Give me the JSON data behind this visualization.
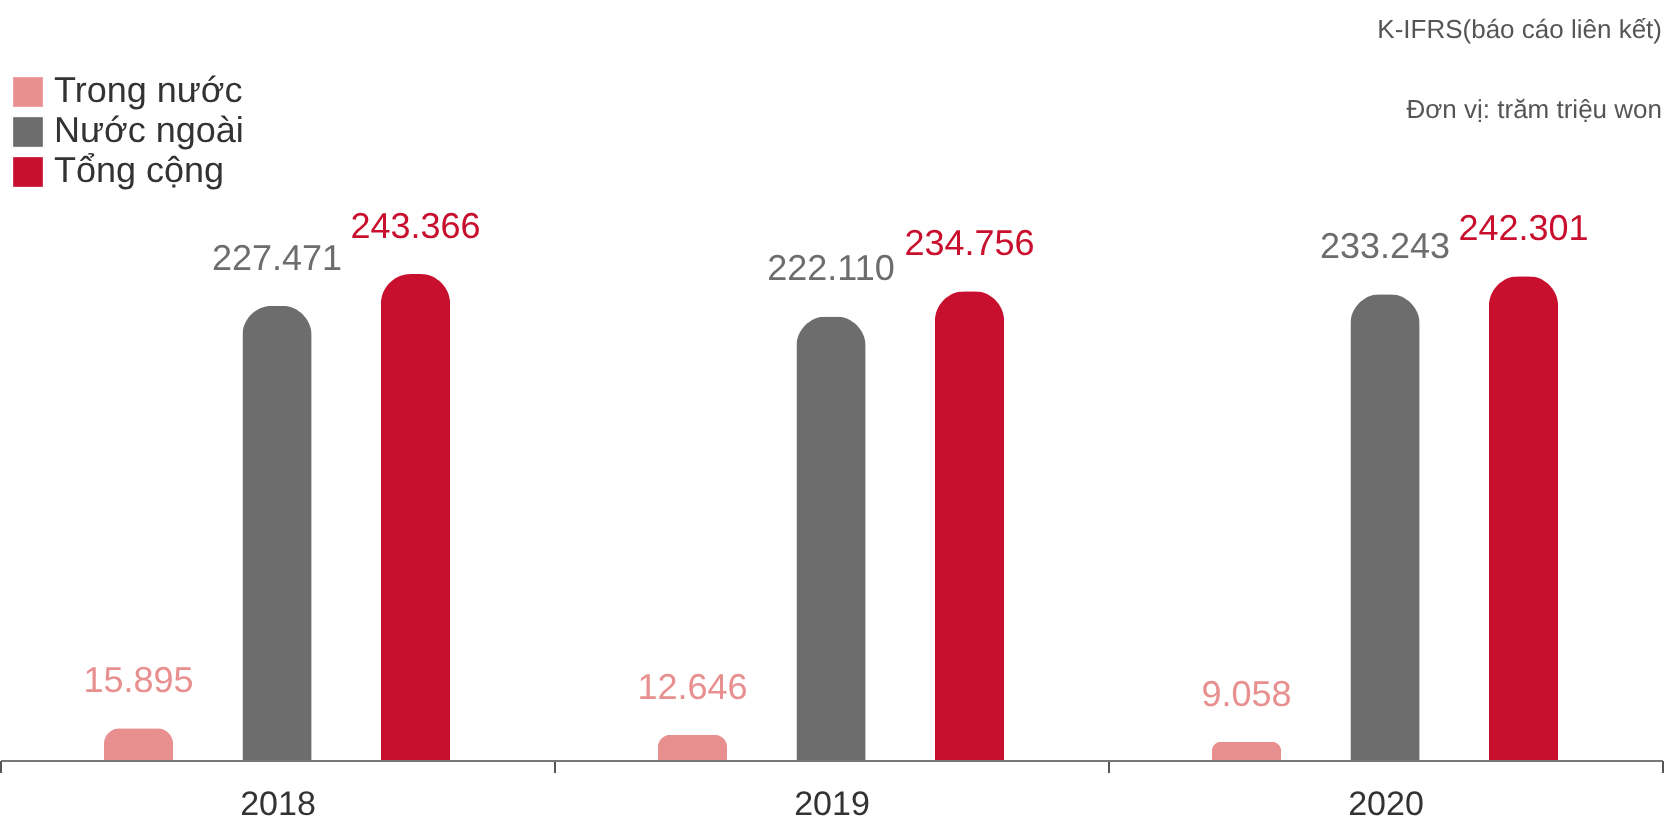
{
  "chart_data": {
    "type": "bar",
    "categories": [
      "2018",
      "2019",
      "2020"
    ],
    "series": [
      {
        "name": "Trong nước",
        "color": "#e8908f",
        "values": [
          15895,
          12646,
          9058
        ],
        "value_labels": [
          "15.895",
          "12.646",
          "9.058"
        ]
      },
      {
        "name": "Nước ngoài",
        "color": "#6d6d6d",
        "values": [
          227471,
          222110,
          233243
        ],
        "value_labels": [
          "227.471",
          "222.110",
          "233.243"
        ]
      },
      {
        "name": "Tổng cộng",
        "color": "#c8102e",
        "values": [
          243366,
          234756,
          242301
        ],
        "value_labels": [
          "243.366",
          "234.756",
          "242.301"
        ]
      }
    ],
    "legend": "top left",
    "annotations": [
      "K-IFRS(báo cáo liên kết)",
      "Đơn vị: trăm triệu won"
    ]
  }
}
